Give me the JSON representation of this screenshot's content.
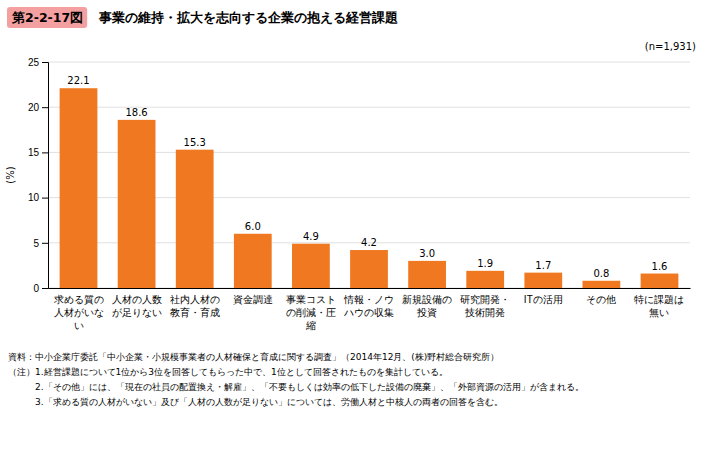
{
  "chart_data": {
    "type": "bar",
    "title": "事業の維持・拡大を志向する企業の抱える経営課題",
    "annotations": [
      "第2-2-17図",
      "(n=1,931)",
      "資料：中小企業庁委託「中小企業・小規模事業者の人材確保と育成に関する調査」（2014年12月、(株)野村総合研究所）",
      "（注）1.経営課題について1位から3位を回答してもらった中で、1位として回答されたものを集計している。",
      "　　　2.「その他」には、「現在の社員の配置換え・解雇」、「不要もしくは効率の低下した設備の廃棄」、「外部資源の活用」が含まれる。",
      "　　　3.「求める質の人材がいない」及び「人材の人数が足りない」については、労働人材と中核人の両者の回答を含む。"
    ],
    "ylabel": "(%)",
    "categories": [
      "求める質の\n人材がいな\nい",
      "人材の人数\nが足りない",
      "社内人材の\n教育・育成",
      "資金調達",
      "事業コスト\nの削減・圧\n縮",
      "情報・ノウ\nハウの収集",
      "新規設備の\n投資",
      "研究開発・\n技術開発",
      "ITの活用",
      "その他",
      "特に課題は\n無い"
    ],
    "values": [
      22.1,
      18.6,
      15.3,
      6.0,
      4.9,
      4.2,
      3.0,
      1.9,
      1.7,
      0.8,
      1.6
    ],
    "value_labels": [
      "22.1",
      "18.6",
      "15.3",
      "6.0",
      "4.9",
      "4.2",
      "3.0",
      "1.9",
      "1.7",
      "0.8",
      "1.6"
    ],
    "data_labels": true,
    "color": "#F07820",
    "ylim": [
      0,
      25
    ],
    "yticks": [
      0,
      5,
      10,
      15,
      20,
      25
    ],
    "grid": true
  }
}
